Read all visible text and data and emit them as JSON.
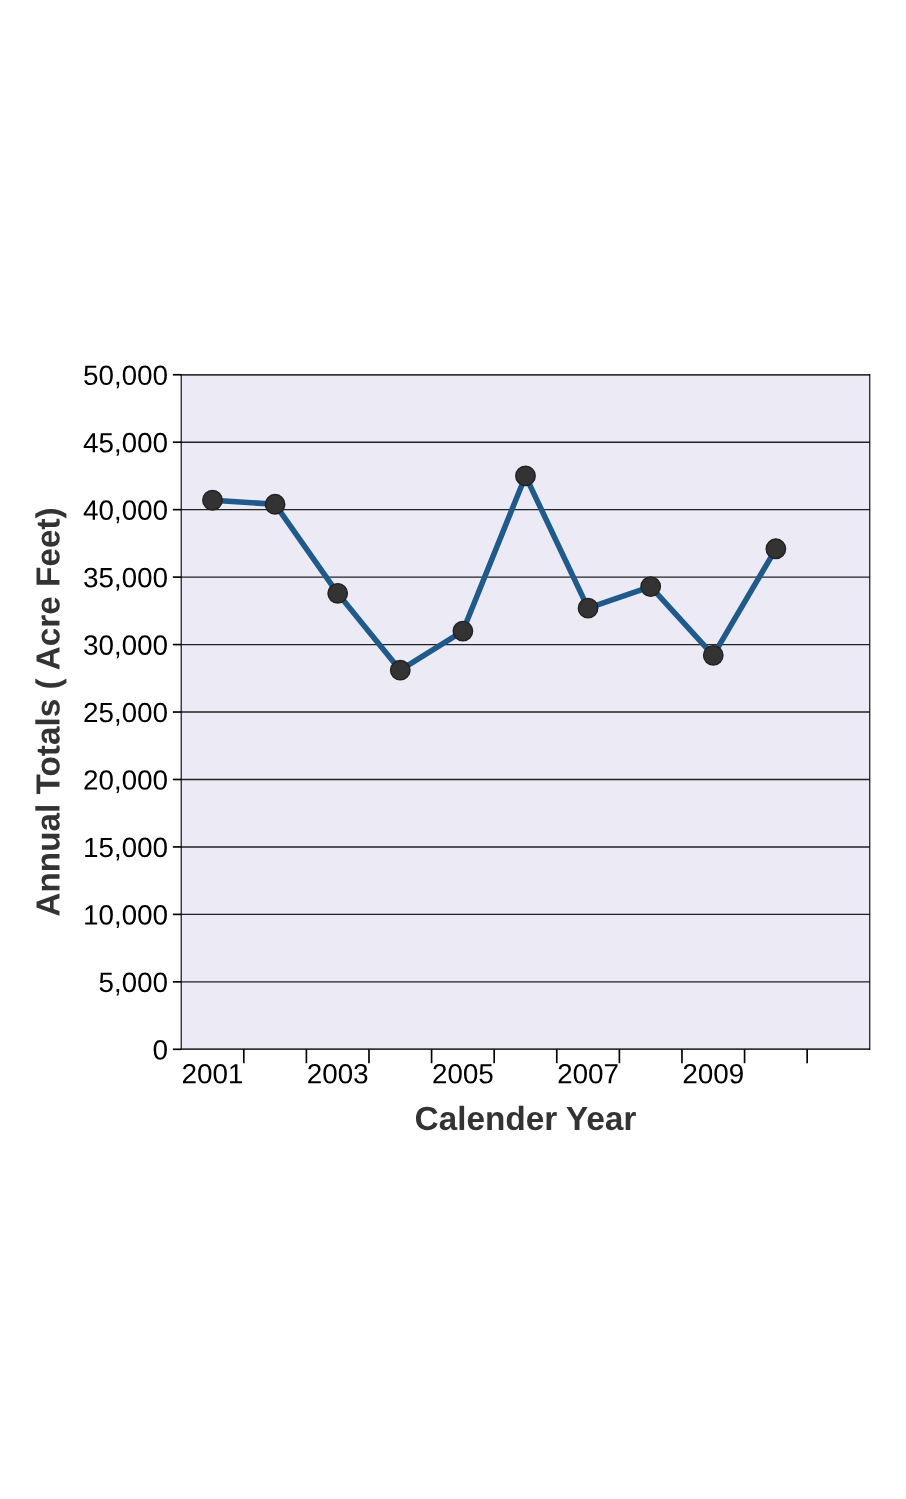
{
  "chart_data": {
    "type": "line",
    "xlabel": "Calender Year",
    "ylabel": "Annual Totals ( Acre Feet)",
    "categories": [
      "2001",
      null,
      "2003",
      null,
      "2005",
      null,
      "2007",
      null,
      "2009",
      null,
      null
    ],
    "series": [
      {
        "color": "#1f5a8a",
        "values": [
          40700,
          40400,
          33800,
          28100,
          31000,
          42500,
          32700,
          34300,
          29200,
          37100,
          null
        ]
      }
    ],
    "ylim": [
      0,
      50000
    ],
    "yticks": [
      0,
      {
        "value": 5000,
        "label": "5,000"
      },
      {
        "value": 10000,
        "label": "10,000"
      },
      {
        "value": 15000,
        "label": "15,000"
      },
      {
        "value": 20000,
        "label": "20,000"
      },
      {
        "value": 25000,
        "label": "25,000"
      },
      {
        "value": 30000,
        "label": "30,000"
      },
      {
        "value": 35000,
        "label": "35,000"
      },
      {
        "value": 40000,
        "label": "40,000"
      },
      {
        "value": 45000,
        "label": "45,000"
      },
      {
        "value": 50000,
        "label": "50,000"
      }
    ],
    "grid": "y",
    "marker": "circle",
    "line_style": "solid"
  }
}
